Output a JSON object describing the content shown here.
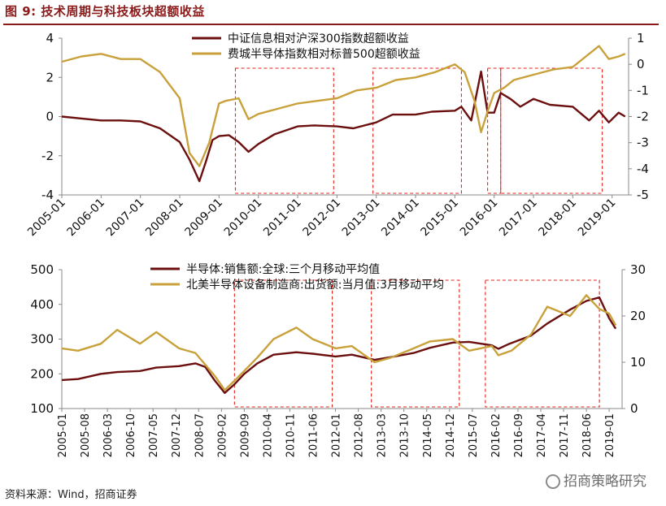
{
  "figure": {
    "title": "图 9:  技术周期与科技板块超额收益",
    "source": "资料来源：Wind，招商证券",
    "watermark": "招商策略研究"
  },
  "colors": {
    "maroon": "#6b0f0f",
    "gold": "#c9a13b",
    "highlight": "#e0241b",
    "frame": "#8b1a1a"
  },
  "chart_data": [
    {
      "type": "line",
      "title": "",
      "x_ticks": [
        "2005-01",
        "2006-01",
        "2007-01",
        "2008-01",
        "2009-01",
        "2010-01",
        "2011-01",
        "2012-01",
        "2013-01",
        "2014-01",
        "2015-01",
        "2016-01",
        "2017-01",
        "2018-01",
        "2019-01"
      ],
      "y_left": {
        "ticks": [
          "4",
          "2",
          "0",
          "-2",
          "-4"
        ],
        "ylim": [
          -4,
          4
        ]
      },
      "y_right": {
        "ticks": [
          "1",
          "0",
          "-1",
          "-2",
          "-3",
          "-4",
          "-5"
        ],
        "ylim": [
          -5,
          1
        ]
      },
      "highlight_periods": [
        [
          "2009-06",
          "2011-12"
        ],
        [
          "2012-12",
          "2015-03"
        ],
        [
          "2015-11",
          "2016-03"
        ],
        [
          "2016-03",
          "2018-10"
        ]
      ],
      "series": [
        {
          "name": "中证信息相对沪深300指数超额收益",
          "axis": "left",
          "x": [
            "2005-01",
            "2005-07",
            "2006-01",
            "2006-07",
            "2007-01",
            "2007-07",
            "2008-01",
            "2008-04",
            "2008-07",
            "2008-09",
            "2008-11",
            "2009-01",
            "2009-04",
            "2009-07",
            "2009-10",
            "2010-01",
            "2010-06",
            "2011-01",
            "2011-06",
            "2012-01",
            "2012-06",
            "2013-01",
            "2013-06",
            "2014-01",
            "2014-06",
            "2015-01",
            "2015-03",
            "2015-06",
            "2015-09",
            "2015-11",
            "2016-01",
            "2016-03",
            "2016-06",
            "2016-09",
            "2017-01",
            "2017-06",
            "2018-01",
            "2018-06",
            "2018-09",
            "2018-12",
            "2019-03",
            "2019-05"
          ],
          "values": [
            0.0,
            -0.1,
            -0.2,
            -0.2,
            -0.25,
            -0.6,
            -1.3,
            -2.2,
            -3.3,
            -2.3,
            -1.2,
            -1.0,
            -0.95,
            -1.3,
            -1.8,
            -1.4,
            -0.9,
            -0.5,
            -0.45,
            -0.5,
            -0.6,
            -0.3,
            0.1,
            0.1,
            0.25,
            0.3,
            0.5,
            -0.2,
            2.3,
            0.2,
            0.2,
            1.2,
            0.9,
            0.5,
            0.9,
            0.6,
            0.5,
            -0.2,
            0.3,
            -0.3,
            0.2,
            0.0
          ]
        },
        {
          "name": "费城半导体指数相对标普500超额收益",
          "axis": "right",
          "x": [
            "2005-01",
            "2005-07",
            "2006-01",
            "2006-07",
            "2007-01",
            "2007-07",
            "2008-01",
            "2008-04",
            "2008-07",
            "2008-10",
            "2009-01",
            "2009-03",
            "2009-07",
            "2009-10",
            "2010-01",
            "2010-07",
            "2011-01",
            "2011-07",
            "2012-01",
            "2012-07",
            "2013-01",
            "2013-07",
            "2014-01",
            "2014-07",
            "2015-01",
            "2015-04",
            "2015-07",
            "2015-09",
            "2015-11",
            "2016-01",
            "2016-04",
            "2016-07",
            "2017-01",
            "2017-07",
            "2018-01",
            "2018-05",
            "2018-09",
            "2018-12",
            "2019-03",
            "2019-05"
          ],
          "values": [
            0.1,
            0.3,
            0.4,
            0.2,
            0.2,
            -0.3,
            -1.3,
            -3.4,
            -3.9,
            -3.0,
            -1.5,
            -1.4,
            -1.3,
            -2.1,
            -1.9,
            -1.7,
            -1.5,
            -1.4,
            -1.3,
            -1.0,
            -0.9,
            -0.6,
            -0.5,
            -0.3,
            0.0,
            -0.3,
            -1.4,
            -2.6,
            -1.8,
            -1.1,
            -0.9,
            -0.6,
            -0.4,
            -0.2,
            -0.1,
            0.3,
            0.7,
            0.2,
            0.3,
            0.4
          ]
        }
      ]
    },
    {
      "type": "line",
      "title": "",
      "x_ticks": [
        "2005-01",
        "2005-08",
        "2006-03",
        "2006-10",
        "2007-05",
        "2007-12",
        "2008-07",
        "2009-02",
        "2009-09",
        "2010-04",
        "2010-11",
        "2011-06",
        "2012-01",
        "2012-08",
        "2013-03",
        "2013-10",
        "2014-05",
        "2014-12",
        "2015-07",
        "2016-02",
        "2016-09",
        "2017-04",
        "2017-11",
        "2018-06",
        "2019-01"
      ],
      "y_left": {
        "ticks": [
          "500",
          "400",
          "300",
          "200",
          "100"
        ],
        "ylim": [
          100,
          500
        ]
      },
      "y_right": {
        "ticks": [
          "30",
          "20",
          "10",
          "0"
        ],
        "ylim": [
          0,
          30
        ]
      },
      "highlight_periods": [
        [
          "2009-06",
          "2011-12"
        ],
        [
          "2012-12",
          "2015-03"
        ],
        [
          "2015-11",
          "2018-10"
        ]
      ],
      "series": [
        {
          "name": "半导体:销售额:全球:三个月移动平均值",
          "axis": "left",
          "x": [
            "2005-01",
            "2005-06",
            "2006-01",
            "2006-06",
            "2007-01",
            "2007-06",
            "2008-01",
            "2008-06",
            "2008-09",
            "2008-12",
            "2009-03",
            "2009-06",
            "2009-09",
            "2010-01",
            "2010-06",
            "2011-01",
            "2011-06",
            "2012-01",
            "2012-06",
            "2013-01",
            "2013-06",
            "2014-01",
            "2014-06",
            "2015-01",
            "2015-06",
            "2016-01",
            "2016-03",
            "2016-06",
            "2017-01",
            "2017-06",
            "2018-01",
            "2018-06",
            "2018-10",
            "2019-01",
            "2019-03"
          ],
          "values": [
            182,
            185,
            200,
            205,
            208,
            218,
            222,
            230,
            220,
            180,
            145,
            170,
            200,
            230,
            255,
            262,
            258,
            250,
            255,
            240,
            248,
            260,
            275,
            290,
            292,
            282,
            272,
            285,
            310,
            345,
            385,
            410,
            420,
            360,
            330
          ]
        },
        {
          "name": "北美半导体设备制造商:出货额:当月值:3月移动平均",
          "axis": "right",
          "x": [
            "2005-01",
            "2005-06",
            "2006-01",
            "2006-06",
            "2007-01",
            "2007-06",
            "2008-01",
            "2008-06",
            "2008-12",
            "2009-03",
            "2009-06",
            "2010-01",
            "2010-06",
            "2011-01",
            "2011-06",
            "2012-01",
            "2012-06",
            "2013-01",
            "2013-06",
            "2014-01",
            "2014-06",
            "2015-01",
            "2015-06",
            "2016-01",
            "2016-03",
            "2016-07",
            "2017-01",
            "2017-06",
            "2018-01",
            "2018-06",
            "2018-10",
            "2019-01",
            "2019-03"
          ],
          "values": [
            13.0,
            12.5,
            14,
            17,
            14,
            16.5,
            13,
            12,
            7,
            4,
            6,
            11,
            15,
            17.5,
            15,
            13,
            13.5,
            10,
            11,
            13,
            14.5,
            15,
            12.5,
            13.5,
            11.5,
            12.5,
            16,
            22,
            20,
            24.5,
            21.5,
            20.5,
            18
          ]
        }
      ]
    }
  ]
}
